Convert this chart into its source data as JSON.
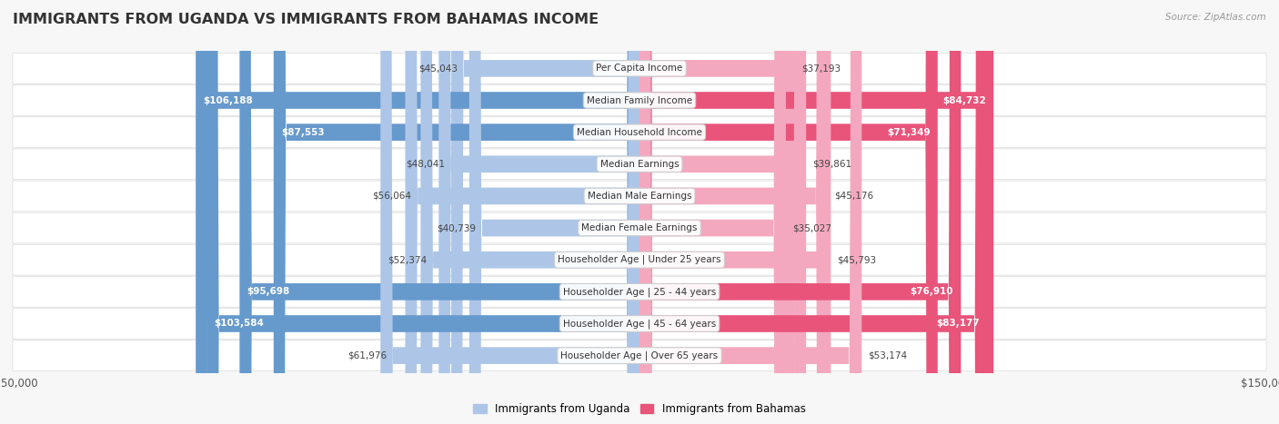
{
  "title": "IMMIGRANTS FROM UGANDA VS IMMIGRANTS FROM BAHAMAS INCOME",
  "source": "Source: ZipAtlas.com",
  "categories": [
    "Per Capita Income",
    "Median Family Income",
    "Median Household Income",
    "Median Earnings",
    "Median Male Earnings",
    "Median Female Earnings",
    "Householder Age | Under 25 years",
    "Householder Age | 25 - 44 years",
    "Householder Age | 45 - 64 years",
    "Householder Age | Over 65 years"
  ],
  "uganda_values": [
    45043,
    106188,
    87553,
    48041,
    56064,
    40739,
    52374,
    95698,
    103584,
    61976
  ],
  "bahamas_values": [
    37193,
    84732,
    71349,
    39861,
    45176,
    35027,
    45793,
    76910,
    83177,
    53174
  ],
  "uganda_labels": [
    "$45,043",
    "$106,188",
    "$87,553",
    "$48,041",
    "$56,064",
    "$40,739",
    "$52,374",
    "$95,698",
    "$103,584",
    "$61,976"
  ],
  "bahamas_labels": [
    "$37,193",
    "$84,732",
    "$71,349",
    "$39,861",
    "$45,176",
    "$35,027",
    "$45,793",
    "$76,910",
    "$83,177",
    "$53,174"
  ],
  "max_value": 150000,
  "uganda_color_light": "#adc6e8",
  "uganda_color_dark": "#6699cc",
  "bahamas_color_light": "#f4a8bf",
  "bahamas_color_dark": "#e8547a",
  "inside_threshold": 65000,
  "legend_uganda": "Immigrants from Uganda",
  "legend_bahamas": "Immigrants from Bahamas",
  "bar_height": 0.52,
  "bg_color": "#f7f7f7",
  "row_bg": "#ffffff",
  "row_border": "#dddddd"
}
